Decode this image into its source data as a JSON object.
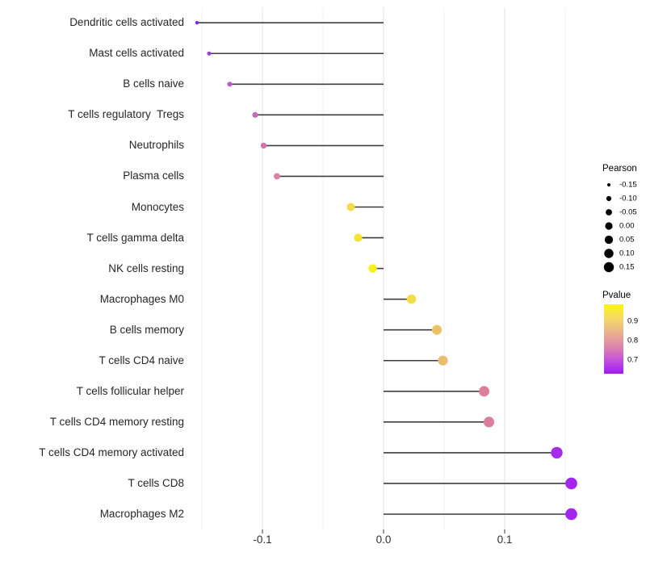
{
  "chart_data": {
    "type": "scatter",
    "style": "lollipop",
    "title": "",
    "xlabel": "",
    "ylabel": "",
    "x_tick_labels": [
      "-0.1",
      "0.0",
      "0.1"
    ],
    "x_tick_values": [
      -0.1,
      0.0,
      0.1
    ],
    "grid_values": [
      -0.15,
      -0.1,
      -0.05,
      0.0,
      0.05,
      0.1,
      0.15
    ],
    "xlim": [
      -0.17,
      0.17
    ],
    "grid_on": true,
    "legend_position": "right",
    "rows": [
      {
        "label": "Dendritic cells activated",
        "pearson": -0.154,
        "pvalue": 0.66,
        "color": "#7E2CD1"
      },
      {
        "label": "Mast cells activated",
        "pearson": -0.144,
        "pvalue": 0.69,
        "color": "#9C40DC"
      },
      {
        "label": "B cells naive",
        "pearson": -0.127,
        "pvalue": 0.73,
        "color": "#BC58D2"
      },
      {
        "label": "T cells regulatory  Tregs",
        "pearson": -0.106,
        "pvalue": 0.76,
        "color": "#C867B6"
      },
      {
        "label": "Neutrophils",
        "pearson": -0.099,
        "pvalue": 0.78,
        "color": "#D074AE"
      },
      {
        "label": "Plasma cells",
        "pearson": -0.088,
        "pvalue": 0.8,
        "color": "#D981A7"
      },
      {
        "label": "Monocytes",
        "pearson": -0.027,
        "pvalue": 0.93,
        "color": "#F2DC4A"
      },
      {
        "label": "T cells gamma delta",
        "pearson": -0.021,
        "pvalue": 0.94,
        "color": "#F5E438"
      },
      {
        "label": "NK cells resting",
        "pearson": -0.009,
        "pvalue": 0.97,
        "color": "#FAEE1F"
      },
      {
        "label": "Macrophages M0",
        "pearson": 0.023,
        "pvalue": 0.93,
        "color": "#F3DD45"
      },
      {
        "label": "B cells memory",
        "pearson": 0.044,
        "pvalue": 0.88,
        "color": "#ECC266"
      },
      {
        "label": "T cells CD4 naive",
        "pearson": 0.049,
        "pvalue": 0.87,
        "color": "#EABC6E"
      },
      {
        "label": "T cells follicular helper",
        "pearson": 0.083,
        "pvalue": 0.79,
        "color": "#DC8099"
      },
      {
        "label": "T cells CD4 memory resting",
        "pearson": 0.087,
        "pvalue": 0.79,
        "color": "#DA7E9C"
      },
      {
        "label": "T cells CD4 memory activated",
        "pearson": 0.143,
        "pvalue": 0.66,
        "color": "#A62BEA"
      },
      {
        "label": "T cells CD8",
        "pearson": 0.155,
        "pvalue": 0.65,
        "color": "#A426EC"
      },
      {
        "label": "Macrophages M2",
        "pearson": 0.155,
        "pvalue": 0.65,
        "color": "#A425EB"
      }
    ],
    "size_legend": {
      "title": "Pearson",
      "entries": [
        {
          "label": "-0.15",
          "value": -0.15
        },
        {
          "label": "-0.10",
          "value": -0.1
        },
        {
          "label": "-0.05",
          "value": -0.05
        },
        {
          "label": "0.00",
          "value": 0.0
        },
        {
          "label": "0.05",
          "value": 0.05
        },
        {
          "label": "0.10",
          "value": 0.1
        },
        {
          "label": "0.15",
          "value": 0.15
        }
      ],
      "dot_color": "#000000"
    },
    "color_legend": {
      "title": "Pvalue",
      "tick_labels": [
        "0.9",
        "0.8",
        "0.7"
      ],
      "gradient_stops": [
        {
          "offset": 0,
          "color": "#FCF515"
        },
        {
          "offset": 20,
          "color": "#F4D964"
        },
        {
          "offset": 35,
          "color": "#EDBD85"
        },
        {
          "offset": 50,
          "color": "#E49E9C"
        },
        {
          "offset": 62,
          "color": "#DB84AC"
        },
        {
          "offset": 72,
          "color": "#D068C4"
        },
        {
          "offset": 82,
          "color": "#C04FDE"
        },
        {
          "offset": 92,
          "color": "#AE31EC"
        },
        {
          "offset": 100,
          "color": "#A31BF0"
        }
      ]
    },
    "colors": {
      "stem": "#3D3D3D",
      "grid_major": "#E4E4E4",
      "grid_minor": "#F0F0F0",
      "axis_tick": "#333333"
    }
  }
}
